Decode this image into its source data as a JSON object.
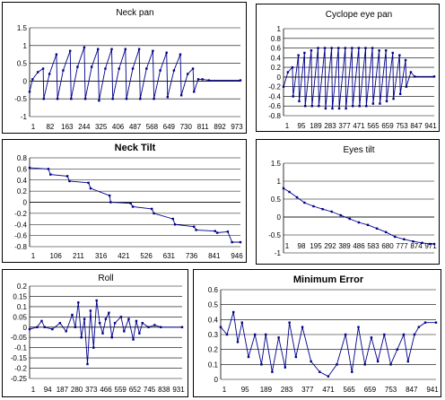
{
  "chart_data": [
    {
      "id": "neck-pan",
      "type": "line",
      "title": "Neck pan",
      "title_bold": false,
      "ylim": [
        -1,
        1.5
      ],
      "yticks": [
        -1,
        -0.5,
        0,
        0.5,
        1,
        1.5
      ],
      "ytick_labels": [
        "-1",
        "-0.5",
        "0",
        "0.5",
        "1",
        "1.5"
      ],
      "xlim": [
        1,
        1000
      ],
      "xtick_labels": [
        "1",
        "82",
        "163",
        "244",
        "325",
        "406",
        "487",
        "568",
        "649",
        "730",
        "811",
        "892",
        "973"
      ],
      "series": [
        {
          "points": [
            [
              1,
              -0.3
            ],
            [
              15,
              0.05
            ],
            [
              40,
              0.25
            ],
            [
              65,
              0.35
            ],
            [
              68,
              -0.5
            ],
            [
              95,
              0.2
            ],
            [
              128,
              0.75
            ],
            [
              133,
              -0.5
            ],
            [
              160,
              0.3
            ],
            [
              193,
              0.85
            ],
            [
              198,
              -0.5
            ],
            [
              228,
              0.4
            ],
            [
              260,
              0.95
            ],
            [
              265,
              -0.5
            ],
            [
              295,
              0.4
            ],
            [
              325,
              0.9
            ],
            [
              330,
              -0.55
            ],
            [
              360,
              0.35
            ],
            [
              390,
              0.9
            ],
            [
              395,
              -0.5
            ],
            [
              425,
              0.35
            ],
            [
              455,
              0.9
            ],
            [
              460,
              -0.5
            ],
            [
              490,
              0.35
            ],
            [
              520,
              0.9
            ],
            [
              525,
              -0.5
            ],
            [
              555,
              0.35
            ],
            [
              585,
              0.85
            ],
            [
              590,
              -0.5
            ],
            [
              620,
              0.3
            ],
            [
              650,
              0.8
            ],
            [
              655,
              -0.45
            ],
            [
              685,
              0.3
            ],
            [
              715,
              0.75
            ],
            [
              720,
              -0.4
            ],
            [
              750,
              0.2
            ],
            [
              775,
              0.35
            ],
            [
              780,
              -0.3
            ],
            [
              800,
              0.05
            ],
            [
              820,
              0.05
            ],
            [
              850,
              0.02
            ],
            [
              1000,
              0.02
            ]
          ]
        }
      ]
    },
    {
      "id": "cyclope-eye-pan",
      "type": "line",
      "title": "Cyclope eye pan",
      "title_bold": false,
      "ylim": [
        -0.8,
        1
      ],
      "yticks": [
        -0.8,
        -0.6,
        -0.4,
        -0.2,
        0,
        0.2,
        0.4,
        0.6,
        0.8,
        1
      ],
      "ytick_labels": [
        "-0.8",
        "-0.6",
        "-0.4",
        "-0.2",
        "0",
        "0.2",
        "0.4",
        "0.6",
        "0.8",
        "1"
      ],
      "xlim": [
        1,
        1000
      ],
      "xtick_labels": [
        "1",
        "95",
        "189",
        "283",
        "377",
        "471",
        "565",
        "659",
        "753",
        "847",
        "941"
      ],
      "series": [
        {
          "points": [
            [
              1,
              -0.2
            ],
            [
              30,
              0.1
            ],
            [
              60,
              0.2
            ],
            [
              65,
              -0.4
            ],
            [
              100,
              0.45
            ],
            [
              105,
              -0.5
            ],
            [
              140,
              0.5
            ],
            [
              145,
              -0.6
            ],
            [
              185,
              0.55
            ],
            [
              190,
              -0.6
            ],
            [
              230,
              0.6
            ],
            [
              235,
              -0.6
            ],
            [
              275,
              0.6
            ],
            [
              280,
              -0.65
            ],
            [
              320,
              0.6
            ],
            [
              325,
              -0.65
            ],
            [
              365,
              0.6
            ],
            [
              370,
              -0.65
            ],
            [
              410,
              0.6
            ],
            [
              415,
              -0.65
            ],
            [
              455,
              0.6
            ],
            [
              460,
              -0.6
            ],
            [
              500,
              0.6
            ],
            [
              505,
              -0.6
            ],
            [
              545,
              0.6
            ],
            [
              550,
              -0.6
            ],
            [
              590,
              0.6
            ],
            [
              595,
              -0.55
            ],
            [
              635,
              0.55
            ],
            [
              640,
              -0.55
            ],
            [
              680,
              0.55
            ],
            [
              685,
              -0.5
            ],
            [
              725,
              0.5
            ],
            [
              730,
              -0.45
            ],
            [
              770,
              0.45
            ],
            [
              775,
              -0.35
            ],
            [
              810,
              0.35
            ],
            [
              815,
              -0.2
            ],
            [
              845,
              0.1
            ],
            [
              870,
              0.01
            ],
            [
              1000,
              0.01
            ]
          ]
        }
      ]
    },
    {
      "id": "neck-tilt",
      "type": "line",
      "title": "Neck Tilt",
      "title_bold": true,
      "ylim": [
        -0.8,
        0.8
      ],
      "yticks": [
        -0.8,
        -0.6,
        -0.4,
        -0.2,
        0,
        0.2,
        0.4,
        0.6,
        0.8
      ],
      "ytick_labels": [
        "-0.8",
        "-0.6",
        "-0.4",
        "-0.2",
        "0",
        "0.2",
        "0.4",
        "0.6",
        "0.8"
      ],
      "xlim": [
        1,
        1000
      ],
      "xtick_labels": [
        "1",
        "106",
        "211",
        "316",
        "421",
        "526",
        "631",
        "736",
        "841",
        "946"
      ],
      "series": [
        {
          "points": [
            [
              1,
              0.62
            ],
            [
              90,
              0.6
            ],
            [
              100,
              0.5
            ],
            [
              180,
              0.47
            ],
            [
              190,
              0.38
            ],
            [
              280,
              0.35
            ],
            [
              290,
              0.25
            ],
            [
              380,
              0.12
            ],
            [
              385,
              0.0
            ],
            [
              480,
              -0.02
            ],
            [
              490,
              -0.08
            ],
            [
              580,
              -0.12
            ],
            [
              590,
              -0.2
            ],
            [
              680,
              -0.3
            ],
            [
              690,
              -0.4
            ],
            [
              780,
              -0.44
            ],
            [
              790,
              -0.5
            ],
            [
              880,
              -0.52
            ],
            [
              890,
              -0.55
            ],
            [
              940,
              -0.53
            ],
            [
              960,
              -0.72
            ],
            [
              1000,
              -0.72
            ]
          ]
        }
      ]
    },
    {
      "id": "eyes-tilt",
      "type": "line",
      "title": "Eyes tilt",
      "title_bold": false,
      "ylim": [
        -1,
        1.5
      ],
      "yticks": [
        -1,
        -0.5,
        0,
        0.5,
        1,
        1.5
      ],
      "ytick_labels": [
        "-1",
        "-0.5",
        "0",
        "0.5",
        "1",
        "1.5"
      ],
      "xlim": [
        1,
        1000
      ],
      "xtick_labels": [
        "1",
        "98",
        "195",
        "292",
        "389",
        "486",
        "583",
        "680",
        "777",
        "874",
        "971"
      ],
      "series": [
        {
          "points": [
            [
              1,
              0.8
            ],
            [
              40,
              0.7
            ],
            [
              90,
              0.55
            ],
            [
              140,
              0.4
            ],
            [
              200,
              0.3
            ],
            [
              260,
              0.22
            ],
            [
              320,
              0.15
            ],
            [
              380,
              0.05
            ],
            [
              440,
              -0.05
            ],
            [
              500,
              -0.15
            ],
            [
              560,
              -0.22
            ],
            [
              620,
              -0.32
            ],
            [
              680,
              -0.42
            ],
            [
              740,
              -0.55
            ],
            [
              800,
              -0.62
            ],
            [
              860,
              -0.68
            ],
            [
              920,
              -0.72
            ],
            [
              970,
              -0.75
            ],
            [
              1000,
              -0.75
            ]
          ]
        }
      ]
    },
    {
      "id": "roll",
      "type": "line",
      "title": "Roll",
      "title_bold": false,
      "ylim": [
        -0.25,
        0.2
      ],
      "yticks": [
        -0.25,
        -0.2,
        -0.15,
        -0.1,
        -0.05,
        0,
        0.05,
        0.1,
        0.15,
        0.2
      ],
      "ytick_labels": [
        "-0.25",
        "-0.2",
        "-0.15",
        "-0.1",
        "-0.05",
        "0",
        "0.05",
        "0.1",
        "0.15",
        "0.2"
      ],
      "xlim": [
        1,
        1000
      ],
      "xtick_labels": [
        "1",
        "94",
        "187",
        "280",
        "373",
        "466",
        "559",
        "652",
        "745",
        "838",
        "931"
      ],
      "series": [
        {
          "points": [
            [
              1,
              -0.01
            ],
            [
              50,
              0.0
            ],
            [
              80,
              0.03
            ],
            [
              100,
              0.0
            ],
            [
              150,
              -0.01
            ],
            [
              200,
              0.02
            ],
            [
              240,
              -0.02
            ],
            [
              280,
              0.06
            ],
            [
              300,
              0.0
            ],
            [
              320,
              0.12
            ],
            [
              340,
              -0.05
            ],
            [
              360,
              0.04
            ],
            [
              380,
              -0.18
            ],
            [
              400,
              0.08
            ],
            [
              420,
              -0.1
            ],
            [
              440,
              0.13
            ],
            [
              460,
              0.02
            ],
            [
              480,
              -0.03
            ],
            [
              500,
              0.04
            ],
            [
              520,
              0.07
            ],
            [
              540,
              -0.05
            ],
            [
              560,
              0.02
            ],
            [
              600,
              0.05
            ],
            [
              620,
              -0.02
            ],
            [
              650,
              0.04
            ],
            [
              680,
              -0.06
            ],
            [
              700,
              0.03
            ],
            [
              720,
              -0.03
            ],
            [
              740,
              0.02
            ],
            [
              780,
              0.0
            ],
            [
              820,
              0.01
            ],
            [
              860,
              0.0
            ],
            [
              1000,
              0.0
            ]
          ]
        }
      ]
    },
    {
      "id": "minimum-error",
      "type": "line",
      "title": "Minimum Error",
      "title_bold": true,
      "ylim": [
        0,
        0.6
      ],
      "yticks": [
        0,
        0.1,
        0.2,
        0.3,
        0.4,
        0.5,
        0.6
      ],
      "ytick_labels": [
        "0",
        "0.1",
        "0.2",
        "0.3",
        "0.4",
        "0.5",
        "0.6"
      ],
      "xlim": [
        1,
        1000
      ],
      "xtick_labels": [
        "1",
        "95",
        "189",
        "283",
        "377",
        "471",
        "565",
        "659",
        "753",
        "847",
        "941"
      ],
      "series": [
        {
          "points": [
            [
              1,
              0.35
            ],
            [
              30,
              0.3
            ],
            [
              60,
              0.45
            ],
            [
              80,
              0.25
            ],
            [
              100,
              0.38
            ],
            [
              130,
              0.15
            ],
            [
              160,
              0.3
            ],
            [
              190,
              0.1
            ],
            [
              210,
              0.3
            ],
            [
              240,
              0.05
            ],
            [
              270,
              0.28
            ],
            [
              300,
              0.08
            ],
            [
              320,
              0.38
            ],
            [
              350,
              0.15
            ],
            [
              380,
              0.35
            ],
            [
              420,
              0.12
            ],
            [
              460,
              0.05
            ],
            [
              500,
              0.02
            ],
            [
              540,
              0.1
            ],
            [
              580,
              0.3
            ],
            [
              610,
              0.05
            ],
            [
              640,
              0.35
            ],
            [
              670,
              0.1
            ],
            [
              700,
              0.28
            ],
            [
              730,
              0.12
            ],
            [
              760,
              0.3
            ],
            [
              790,
              0.1
            ],
            [
              820,
              0.2
            ],
            [
              850,
              0.3
            ],
            [
              870,
              0.12
            ],
            [
              900,
              0.3
            ],
            [
              920,
              0.35
            ],
            [
              950,
              0.38
            ],
            [
              1000,
              0.38
            ]
          ]
        }
      ]
    }
  ]
}
